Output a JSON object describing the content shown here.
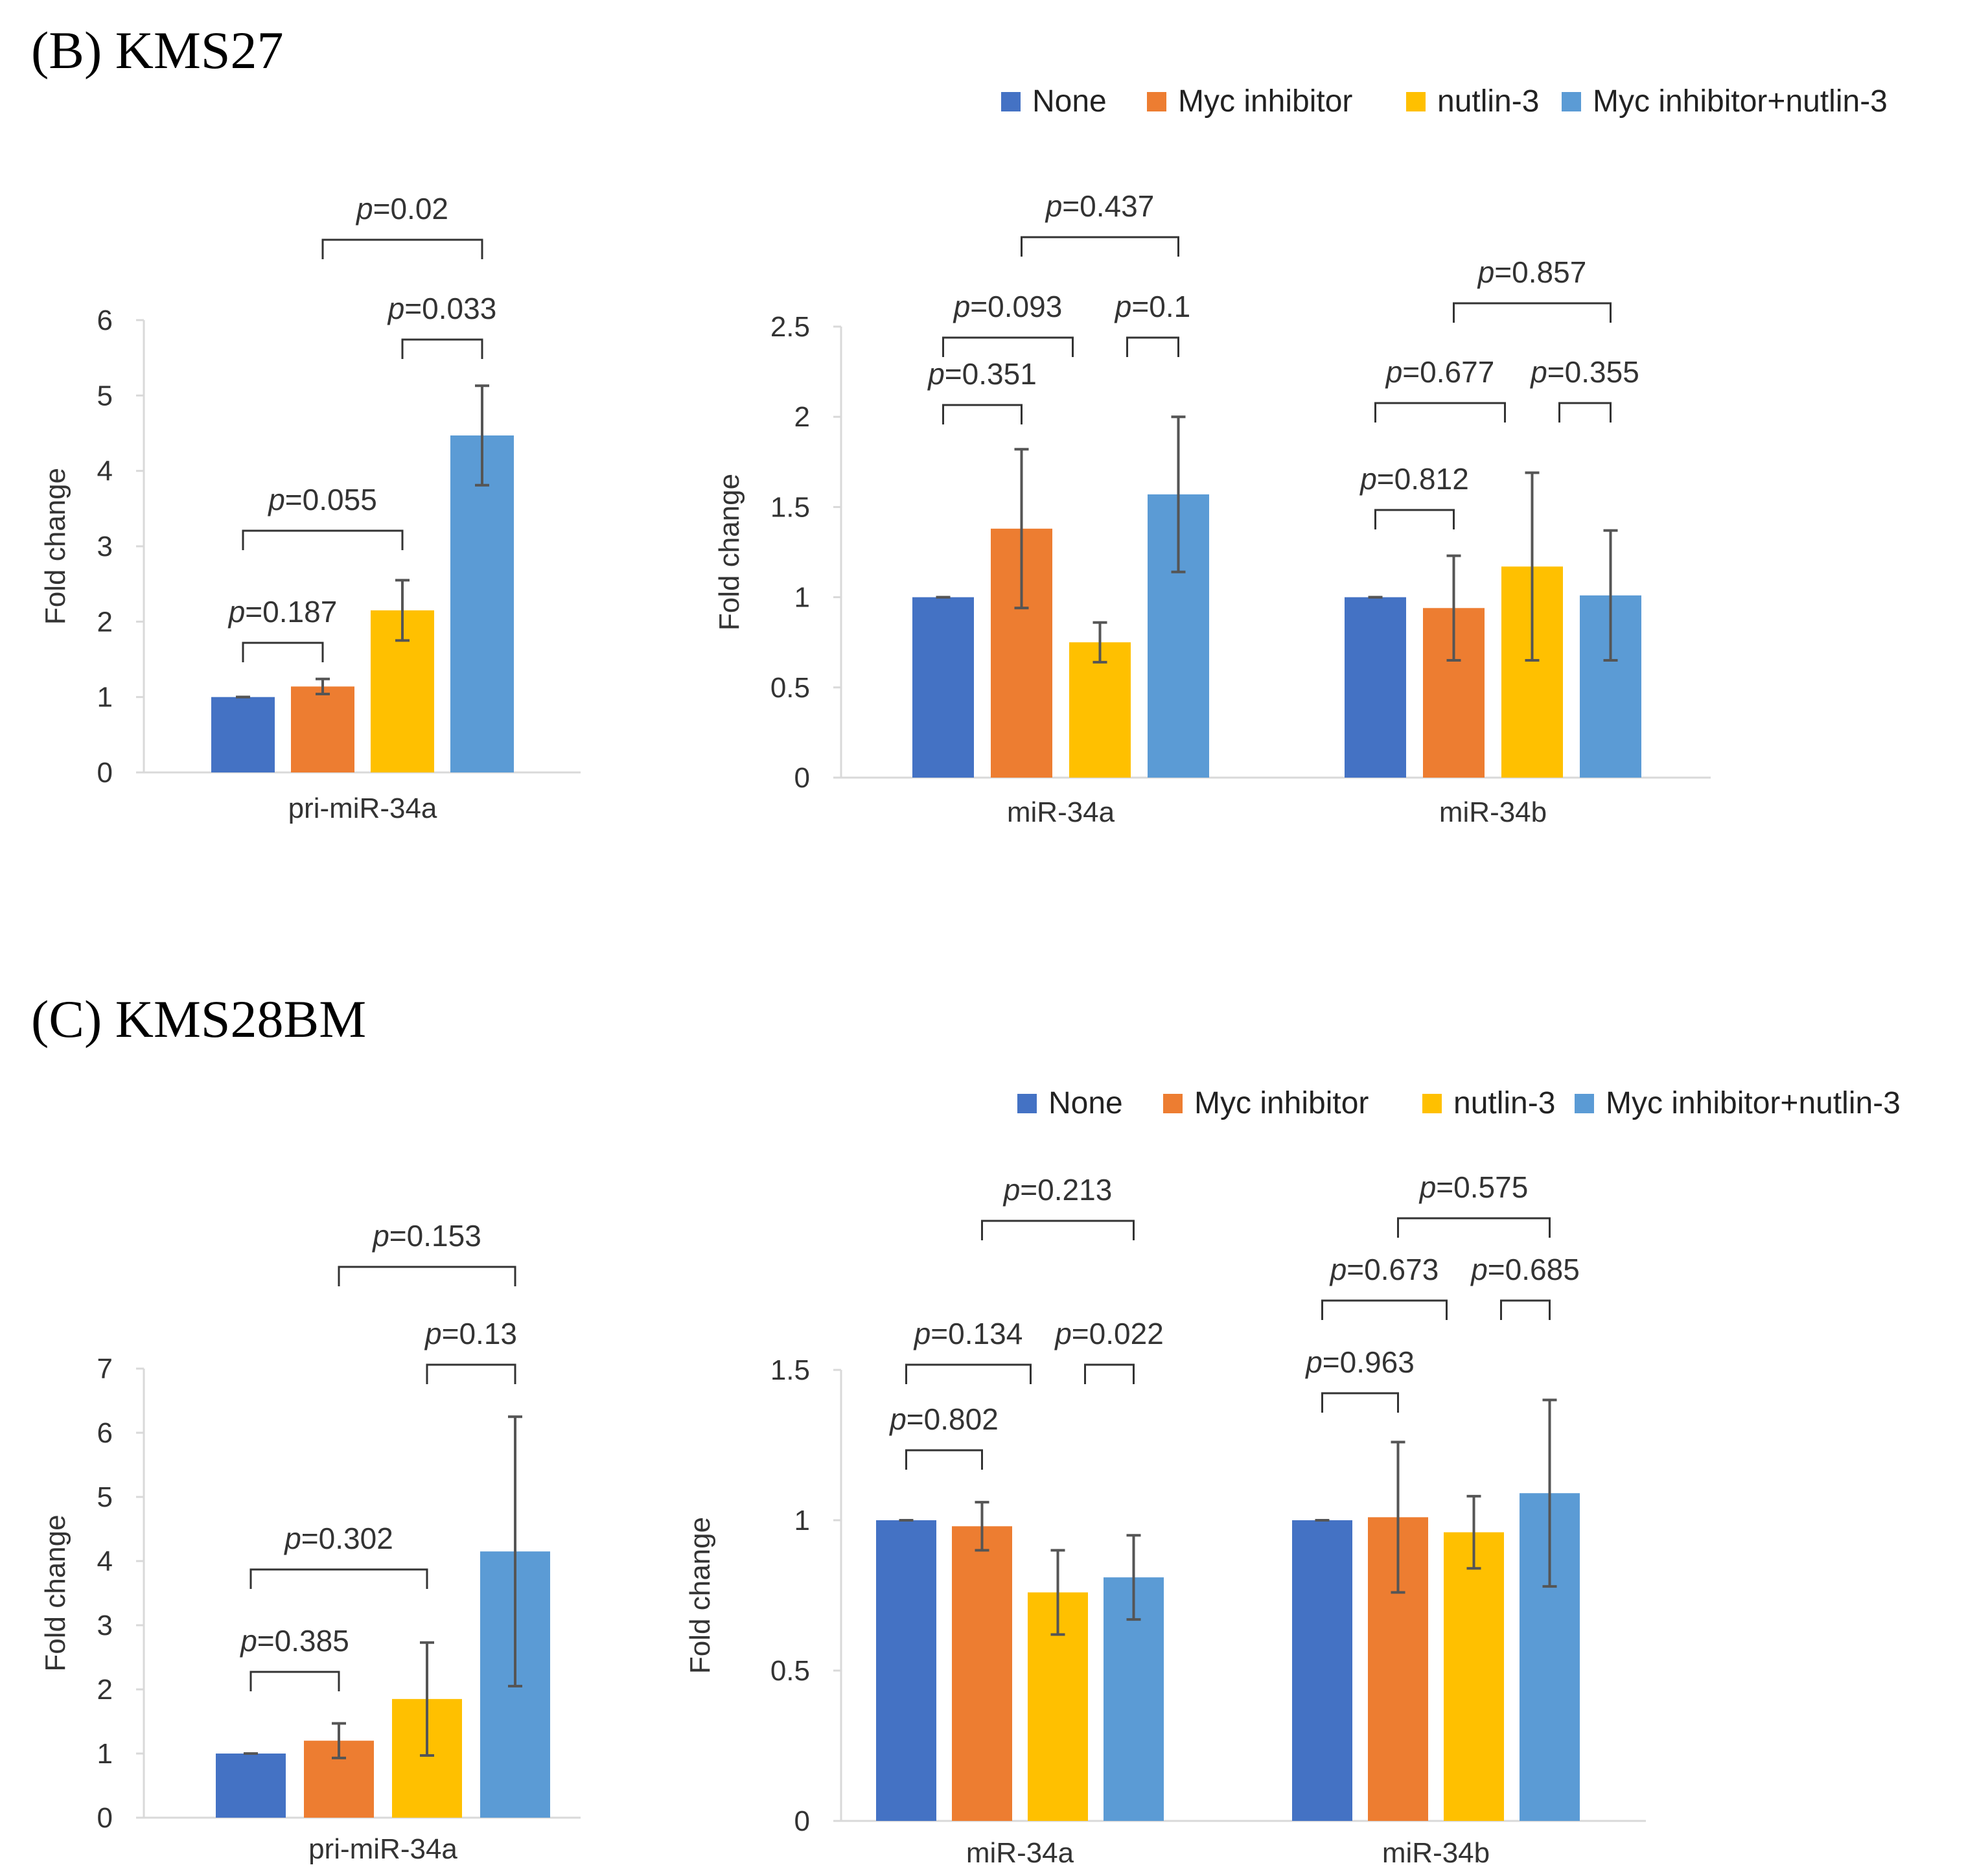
{
  "legend": [
    {
      "label": "None",
      "color": "#4472C4"
    },
    {
      "label": "Myc inhibitor",
      "color": "#ED7D31"
    },
    {
      "label": "nutlin-3",
      "color": "#FFC000"
    },
    {
      "label": "Myc inhibitor+nutlin-3",
      "color": "#5B9BD5"
    }
  ],
  "p_prefix": "p",
  "chart_data": [
    {
      "panel": "B",
      "panel_title": "(B) KMS27",
      "type": "bar",
      "ylabel": "Fold change",
      "ylim": [
        0,
        6
      ],
      "yticks": [
        "0",
        "1",
        "2",
        "3",
        "4",
        "5",
        "6"
      ],
      "categories": [
        "pri-miR-34a"
      ],
      "series": [
        {
          "name": "None",
          "values": [
            1.0
          ],
          "errors": [
            0.0
          ]
        },
        {
          "name": "Myc inhibitor",
          "values": [
            1.14
          ],
          "errors": [
            0.1
          ]
        },
        {
          "name": "nutlin-3",
          "values": [
            2.15
          ],
          "errors": [
            0.4
          ]
        },
        {
          "name": "Myc inhibitor+nutlin-3",
          "values": [
            4.47
          ],
          "errors": [
            0.66
          ]
        }
      ],
      "comparisons": [
        {
          "category": 0,
          "from": 0,
          "to": 1,
          "p": "=0.187"
        },
        {
          "category": 0,
          "from": 0,
          "to": 2,
          "p": "=0.055"
        },
        {
          "category": 0,
          "from": 2,
          "to": 3,
          "p": "=0.033"
        },
        {
          "category": 0,
          "from": 1,
          "to": 3,
          "p": "=0.02"
        }
      ]
    },
    {
      "panel": "B",
      "type": "bar",
      "ylabel": "Fold change",
      "ylim": [
        0,
        2.5
      ],
      "yticks": [
        "0",
        "0.5",
        "1",
        "1.5",
        "2",
        "2.5"
      ],
      "categories": [
        "miR-34a",
        "miR-34b"
      ],
      "series": [
        {
          "name": "None",
          "values": [
            1.0,
            1.0
          ],
          "errors": [
            0.0,
            0.0
          ]
        },
        {
          "name": "Myc inhibitor",
          "values": [
            1.38,
            0.94
          ],
          "errors": [
            0.44,
            0.29
          ]
        },
        {
          "name": "nutlin-3",
          "values": [
            0.75,
            1.17
          ],
          "errors": [
            0.11,
            0.52
          ]
        },
        {
          "name": "Myc inhibitor+nutlin-3",
          "values": [
            1.57,
            1.01
          ],
          "errors": [
            0.43,
            0.36
          ]
        }
      ],
      "comparisons": [
        {
          "category": 0,
          "from": 0,
          "to": 1,
          "p": "=0.351"
        },
        {
          "category": 0,
          "from": 0,
          "to": 2,
          "p": "=0.093"
        },
        {
          "category": 0,
          "from": 2,
          "to": 3,
          "p": "=0.1"
        },
        {
          "category": 0,
          "from": 1,
          "to": 3,
          "p": "=0.437"
        },
        {
          "category": 1,
          "from": 0,
          "to": 1,
          "p": "=0.812"
        },
        {
          "category": 1,
          "from": 0,
          "to": 2,
          "p": "=0.677"
        },
        {
          "category": 1,
          "from": 2,
          "to": 3,
          "p": "=0.355"
        },
        {
          "category": 1,
          "from": 1,
          "to": 3,
          "p": "=0.857"
        }
      ]
    },
    {
      "panel": "C",
      "panel_title": "(C) KMS28BM",
      "type": "bar",
      "ylabel": "Fold change",
      "ylim": [
        0,
        7
      ],
      "yticks": [
        "0",
        "1",
        "2",
        "3",
        "4",
        "5",
        "6",
        "7"
      ],
      "categories": [
        "pri-miR-34a"
      ],
      "series": [
        {
          "name": "None",
          "values": [
            1.0
          ],
          "errors": [
            0.0
          ]
        },
        {
          "name": "Myc inhibitor",
          "values": [
            1.2
          ],
          "errors": [
            0.27
          ]
        },
        {
          "name": "nutlin-3",
          "values": [
            1.85
          ],
          "errors": [
            0.88
          ]
        },
        {
          "name": "Myc inhibitor+nutlin-3",
          "values": [
            4.15
          ],
          "errors": [
            2.1
          ]
        }
      ],
      "comparisons": [
        {
          "category": 0,
          "from": 0,
          "to": 1,
          "p": "=0.385"
        },
        {
          "category": 0,
          "from": 0,
          "to": 2,
          "p": "=0.302"
        },
        {
          "category": 0,
          "from": 2,
          "to": 3,
          "p": "=0.13"
        },
        {
          "category": 0,
          "from": 1,
          "to": 3,
          "p": "=0.153"
        }
      ]
    },
    {
      "panel": "C",
      "type": "bar",
      "ylabel": "Fold change",
      "ylim": [
        0,
        1.5
      ],
      "yticks": [
        "0",
        "0.5",
        "1",
        "1.5"
      ],
      "categories": [
        "miR-34a",
        "miR-34b"
      ],
      "series": [
        {
          "name": "None",
          "values": [
            1.0,
            1.0
          ],
          "errors": [
            0.0,
            0.0
          ]
        },
        {
          "name": "Myc inhibitor",
          "values": [
            0.98,
            1.01
          ],
          "errors": [
            0.08,
            0.25
          ]
        },
        {
          "name": "nutlin-3",
          "values": [
            0.76,
            0.96
          ],
          "errors": [
            0.14,
            0.12
          ]
        },
        {
          "name": "Myc inhibitor+nutlin-3",
          "values": [
            0.81,
            1.09
          ],
          "errors": [
            0.14,
            0.31
          ]
        }
      ],
      "comparisons": [
        {
          "category": 0,
          "from": 0,
          "to": 1,
          "p": "=0.802"
        },
        {
          "category": 0,
          "from": 0,
          "to": 2,
          "p": "=0.134"
        },
        {
          "category": 0,
          "from": 2,
          "to": 3,
          "p": "=0.022"
        },
        {
          "category": 0,
          "from": 1,
          "to": 3,
          "p": "=0.213"
        },
        {
          "category": 1,
          "from": 0,
          "to": 1,
          "p": "=0.963"
        },
        {
          "category": 1,
          "from": 0,
          "to": 2,
          "p": "=0.673"
        },
        {
          "category": 1,
          "from": 2,
          "to": 3,
          "p": "=0.685"
        },
        {
          "category": 1,
          "from": 1,
          "to": 3,
          "p": "=0.575"
        }
      ]
    }
  ]
}
